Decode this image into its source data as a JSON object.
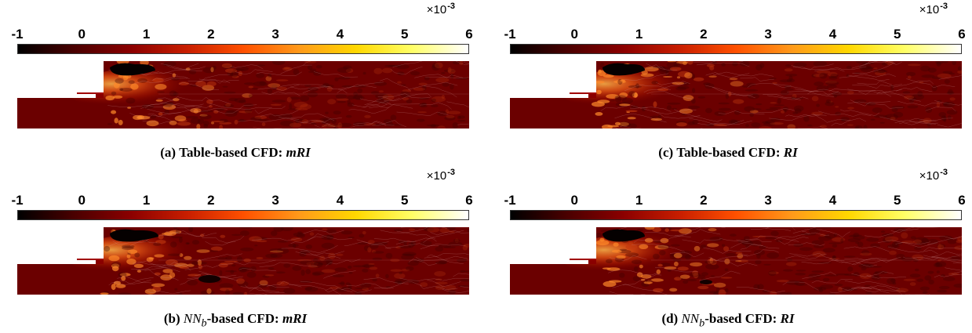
{
  "colormap": {
    "name": "hot",
    "stops": [
      "#000000",
      "#4a0000",
      "#8b0000",
      "#c81e00",
      "#ff5000",
      "#ff9a1a",
      "#ffd700",
      "#ffff66",
      "#ffffff"
    ]
  },
  "chart_data": [
    {
      "type": "heatmap",
      "panel_id": "a",
      "caption": {
        "prefix": "(a) ",
        "model_base": "",
        "model_sub": "",
        "mid": "Table-based CFD: ",
        "metric": "mRI"
      },
      "colorbar": {
        "ticks": [
          "-1",
          "0",
          "1",
          "2",
          "3",
          "4",
          "5",
          "6"
        ],
        "range": [
          -1,
          6
        ],
        "scale_base": "×10",
        "scale_exp": "-3"
      }
    },
    {
      "type": "heatmap",
      "panel_id": "c",
      "caption": {
        "prefix": "(c) ",
        "model_base": "",
        "model_sub": "",
        "mid": "Table-based CFD: ",
        "metric": "RI"
      },
      "colorbar": {
        "ticks": [
          "-1",
          "0",
          "1",
          "2",
          "3",
          "4",
          "5",
          "6"
        ],
        "range": [
          -1,
          6
        ],
        "scale_base": "×10",
        "scale_exp": "-3"
      }
    },
    {
      "type": "heatmap",
      "panel_id": "b",
      "caption": {
        "prefix": "(b) ",
        "model_base": "NN",
        "model_sub": "b",
        "mid": "-based CFD: ",
        "metric": "mRI"
      },
      "colorbar": {
        "ticks": [
          "-1",
          "0",
          "1",
          "2",
          "3",
          "4",
          "5",
          "6"
        ],
        "range": [
          -1,
          6
        ],
        "scale_base": "×10",
        "scale_exp": "-3"
      }
    },
    {
      "type": "heatmap",
      "panel_id": "d",
      "caption": {
        "prefix": "(d) ",
        "model_base": "NN",
        "model_sub": "b",
        "mid": "-based CFD: ",
        "metric": "RI"
      },
      "colorbar": {
        "ticks": [
          "-1",
          "0",
          "1",
          "2",
          "3",
          "4",
          "5",
          "6"
        ],
        "range": [
          -1,
          6
        ],
        "scale_base": "×10",
        "scale_exp": "-3"
      }
    }
  ]
}
